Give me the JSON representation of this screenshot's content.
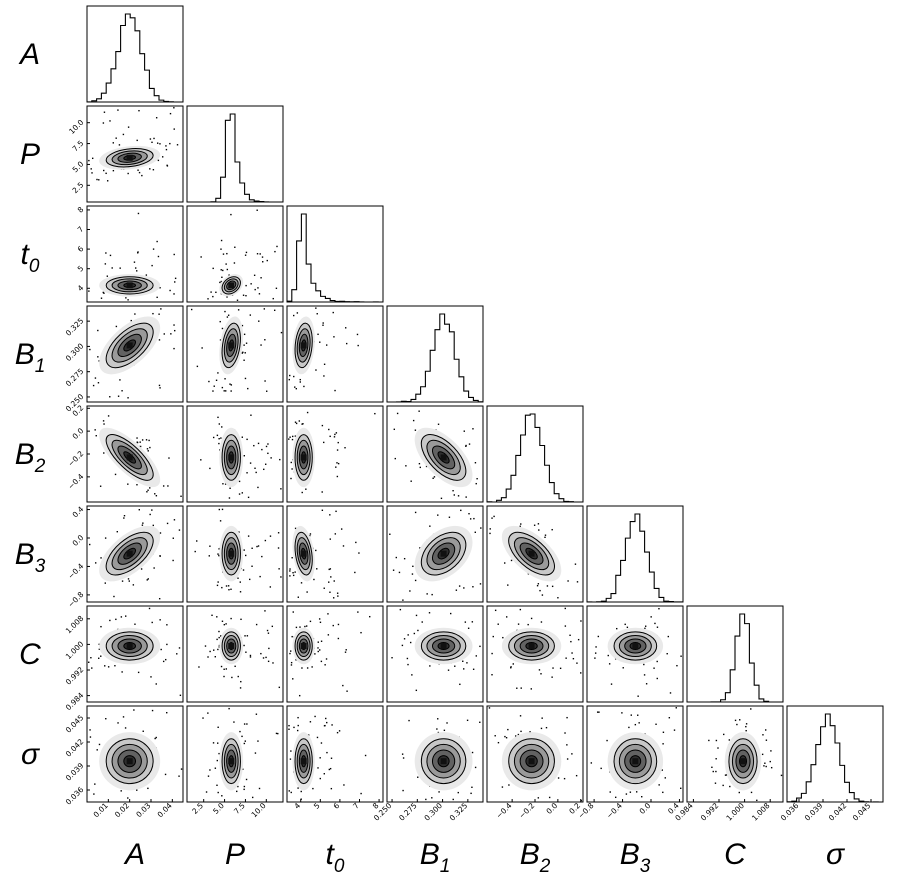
{
  "chart_data": {
    "type": "corner",
    "params": [
      {
        "name": "A",
        "sym": "A",
        "sub": "",
        "range": [
          0.0,
          0.045
        ],
        "ticks": [
          0.01,
          0.02,
          0.03,
          0.04
        ],
        "tick_labels": [
          "0.01",
          "0.02",
          "0.03",
          "0.04"
        ],
        "mean": 0.02,
        "sd": 0.0055,
        "skew": 0
      },
      {
        "name": "P",
        "sym": "P",
        "sub": "",
        "range": [
          0.5,
          12.0
        ],
        "ticks": [
          2.5,
          5.0,
          7.5,
          10.0
        ],
        "tick_labels": [
          "2.5",
          "5.0",
          "7.5",
          "10.0"
        ],
        "mean": 5.8,
        "sd": 0.55,
        "skew": 1.2
      },
      {
        "name": "t0",
        "sym": "t",
        "sub": "0",
        "range": [
          3.3,
          8.2
        ],
        "ticks": [
          4,
          5,
          6,
          7,
          8
        ],
        "tick_labels": [
          "4",
          "5",
          "6",
          "7",
          "8"
        ],
        "mean": 4.15,
        "sd": 0.22,
        "skew": 2.5
      },
      {
        "name": "B1",
        "sym": "B",
        "sub": "1",
        "range": [
          0.245,
          0.34
        ],
        "ticks": [
          0.25,
          0.275,
          0.3,
          0.325
        ],
        "tick_labels": [
          "0.250",
          "0.275",
          "0.300",
          "0.325"
        ],
        "mean": 0.301,
        "sd": 0.011,
        "skew": 0
      },
      {
        "name": "B2",
        "sym": "B",
        "sub": "2",
        "range": [
          -0.62,
          0.22
        ],
        "ticks": [
          -0.4,
          -0.2,
          0.0,
          0.2
        ],
        "tick_labels": [
          "−0.4",
          "−0.2",
          "0.0",
          "0.2"
        ],
        "mean": -0.23,
        "sd": 0.1,
        "skew": 0
      },
      {
        "name": "B3",
        "sym": "B",
        "sub": "3",
        "range": [
          -0.9,
          0.45
        ],
        "ticks": [
          -0.8,
          -0.4,
          0.0,
          0.4
        ],
        "tick_labels": [
          "−0.8",
          "−0.4",
          "0.0",
          "0.4"
        ],
        "mean": -0.22,
        "sd": 0.15,
        "skew": 0
      },
      {
        "name": "C",
        "sym": "C",
        "sub": "",
        "range": [
          0.982,
          1.012
        ],
        "ticks": [
          0.984,
          0.992,
          1.0,
          1.008
        ],
        "tick_labels": [
          "0.984",
          "0.992",
          "1.000",
          "1.008"
        ],
        "mean": 0.9995,
        "sd": 0.0022,
        "skew": 0
      },
      {
        "name": "sigma",
        "sym": "σ",
        "sub": "",
        "range": [
          0.0345,
          0.0465
        ],
        "ticks": [
          0.036,
          0.039,
          0.042,
          0.045
        ],
        "tick_labels": [
          "0.036",
          "0.039",
          "0.042",
          "0.045"
        ],
        "mean": 0.0396,
        "sd": 0.0014,
        "skew": 0
      }
    ],
    "correlations": {
      "A-P": 0.25,
      "A-B1": 0.6,
      "A-B2": -0.75,
      "A-B3": 0.6,
      "P-B1": 0.3,
      "P-t0": 0.3,
      "t0-B1": 0.2,
      "t0-B3": -0.3,
      "B1-B2": -0.6,
      "B1-B3": 0.4,
      "B2-B3": -0.6
    },
    "contour_levels_sigma": [
      0.5,
      1.0,
      1.5,
      2.0
    ],
    "histogram_bins": 20,
    "grid": false,
    "legend": "none"
  }
}
